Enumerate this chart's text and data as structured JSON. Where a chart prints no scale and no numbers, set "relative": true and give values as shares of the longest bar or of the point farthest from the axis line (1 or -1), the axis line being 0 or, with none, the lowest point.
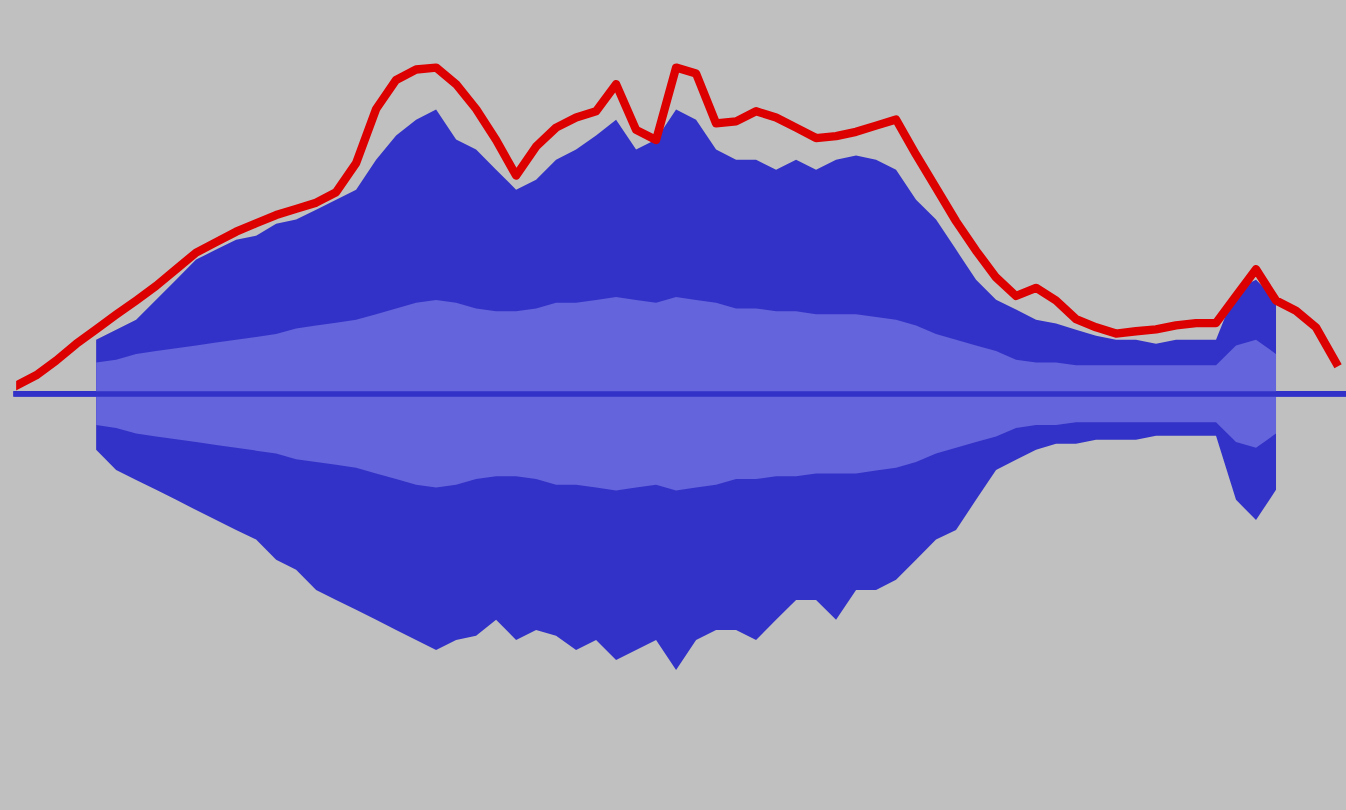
{
  "chart_data": [
    {
      "type": "area",
      "relative": true,
      "categories": [
        null,
        null,
        null,
        null,
        null,
        null,
        null,
        null,
        null,
        null,
        null,
        null,
        null,
        null,
        null,
        null,
        null,
        null,
        null,
        null,
        null,
        null,
        null,
        null,
        null,
        null,
        null,
        null,
        null,
        null,
        null,
        null,
        null,
        null,
        null,
        null,
        null,
        null,
        null,
        null,
        null,
        null,
        null,
        null,
        null,
        null,
        null,
        null,
        null,
        null,
        null,
        null,
        null,
        null,
        null,
        null,
        null,
        null,
        null,
        null
      ],
      "series": [
        {
          "color": "#3232c8",
          "values": [
            0.19,
            0.225,
            0.26,
            0.331,
            0.401,
            0.472,
            0.507,
            0.542,
            0.556,
            0.598,
            0.613,
            0.647,
            0.682,
            0.718,
            0.823,
            0.908,
            0.964,
            1,
            0.894,
            0.859,
            0.788,
            0.718,
            0.753,
            0.823,
            0.859,
            0.908,
            0.964,
            0.859,
            0.894,
            1,
            0.964,
            0.859,
            0.823,
            0.823,
            0.788,
            0.823,
            0.788,
            0.823,
            0.838,
            0.823,
            0.788,
            0.682,
            0.613,
            0.507,
            0.401,
            0.331,
            0.296,
            0.26,
            0.247,
            0.225,
            0.204,
            0.19,
            0.19,
            0.176,
            0.19,
            0.19,
            0.19,
            0.366,
            0.401,
            0.331
          ]
        },
        {
          "color": "#3232c8",
          "values": [
            -0.197,
            -0.268,
            -0.303,
            -0.338,
            -0.373,
            -0.409,
            -0.444,
            -0.479,
            -0.513,
            -0.584,
            -0.619,
            -0.69,
            -0.725,
            -0.76,
            -0.795,
            -0.831,
            -0.866,
            -0.901,
            -0.866,
            -0.851,
            -0.795,
            -0.866,
            -0.831,
            -0.851,
            -0.901,
            -0.866,
            -0.936,
            -0.901,
            -0.866,
            -0.972,
            -0.866,
            -0.831,
            -0.831,
            -0.866,
            -0.795,
            -0.725,
            -0.725,
            -0.795,
            -0.69,
            -0.69,
            -0.654,
            -0.584,
            -0.513,
            -0.479,
            -0.373,
            -0.268,
            -0.232,
            -0.197,
            -0.176,
            -0.176,
            -0.162,
            -0.162,
            -0.162,
            -0.148,
            -0.148,
            -0.148,
            -0.148,
            -0.373,
            -0.444,
            -0.338
          ]
        },
        {
          "color": "#6464dc",
          "values": [
            0.11,
            0.12,
            0.14,
            0.15,
            0.16,
            0.17,
            0.18,
            0.19,
            0.2,
            0.21,
            0.23,
            0.24,
            0.25,
            0.26,
            0.28,
            0.3,
            0.32,
            0.33,
            0.32,
            0.3,
            0.29,
            0.29,
            0.3,
            0.32,
            0.32,
            0.33,
            0.34,
            0.33,
            0.32,
            0.34,
            0.33,
            0.32,
            0.3,
            0.3,
            0.29,
            0.29,
            0.28,
            0.28,
            0.28,
            0.27,
            0.26,
            0.24,
            0.21,
            0.19,
            0.17,
            0.15,
            0.12,
            0.11,
            0.11,
            0.1,
            0.1,
            0.1,
            0.1,
            0.1,
            0.1,
            0.1,
            0.1,
            0.17,
            0.19,
            0.14
          ]
        },
        {
          "color": "#6464dc",
          "values": [
            -0.11,
            -0.12,
            -0.14,
            -0.15,
            -0.16,
            -0.17,
            -0.18,
            -0.19,
            -0.2,
            -0.21,
            -0.23,
            -0.24,
            -0.25,
            -0.26,
            -0.28,
            -0.3,
            -0.32,
            -0.33,
            -0.32,
            -0.3,
            -0.29,
            -0.29,
            -0.3,
            -0.32,
            -0.32,
            -0.33,
            -0.34,
            -0.33,
            -0.32,
            -0.34,
            -0.33,
            -0.32,
            -0.3,
            -0.3,
            -0.29,
            -0.29,
            -0.28,
            -0.28,
            -0.28,
            -0.27,
            -0.26,
            -0.24,
            -0.21,
            -0.19,
            -0.17,
            -0.15,
            -0.12,
            -0.11,
            -0.11,
            -0.1,
            -0.1,
            -0.1,
            -0.1,
            -0.1,
            -0.1,
            -0.1,
            -0.1,
            -0.17,
            -0.19,
            -0.14
          ]
        }
      ]
    },
    {
      "type": "line",
      "relative": true,
      "categories": [
        null,
        null,
        null,
        null,
        null,
        null,
        null,
        null,
        null,
        null,
        null,
        null,
        null,
        null,
        null,
        null,
        null,
        null,
        null,
        null,
        null,
        null,
        null,
        null,
        null,
        null,
        null,
        null,
        null,
        null,
        null,
        null,
        null,
        null,
        null,
        null,
        null,
        null,
        null,
        null,
        null,
        null,
        null,
        null,
        null,
        null,
        null,
        null,
        null,
        null,
        null,
        null,
        null,
        null,
        null,
        null,
        null,
        null,
        null,
        null,
        null,
        null,
        null,
        null,
        null,
        null,
        null
      ],
      "series": [
        {
          "color": "#dd0000",
          "values": [
            0.025,
            0.057,
            0.102,
            0.153,
            0.198,
            0.243,
            0.286,
            0.331,
            0.382,
            0.433,
            0.465,
            0.497,
            0.523,
            0.548,
            0.567,
            0.586,
            0.618,
            0.707,
            0.873,
            0.962,
            0.994,
            1,
            0.949,
            0.873,
            0.778,
            0.669,
            0.758,
            0.816,
            0.847,
            0.866,
            0.949,
            0.809,
            0.778,
            1,
            0.982,
            0.829,
            0.835,
            0.866,
            0.847,
            0.816,
            0.784,
            0.79,
            0.803,
            0.822,
            0.841,
            0.733,
            0.631,
            0.529,
            0.439,
            0.357,
            0.3,
            0.325,
            0.286,
            0.229,
            0.204,
            0.185,
            0.192,
            0.198,
            0.21,
            0.217,
            0.217,
            0.3,
            0.382,
            0.286,
            0.255,
            0.204,
            0.096
          ]
        }
      ]
    }
  ]
}
